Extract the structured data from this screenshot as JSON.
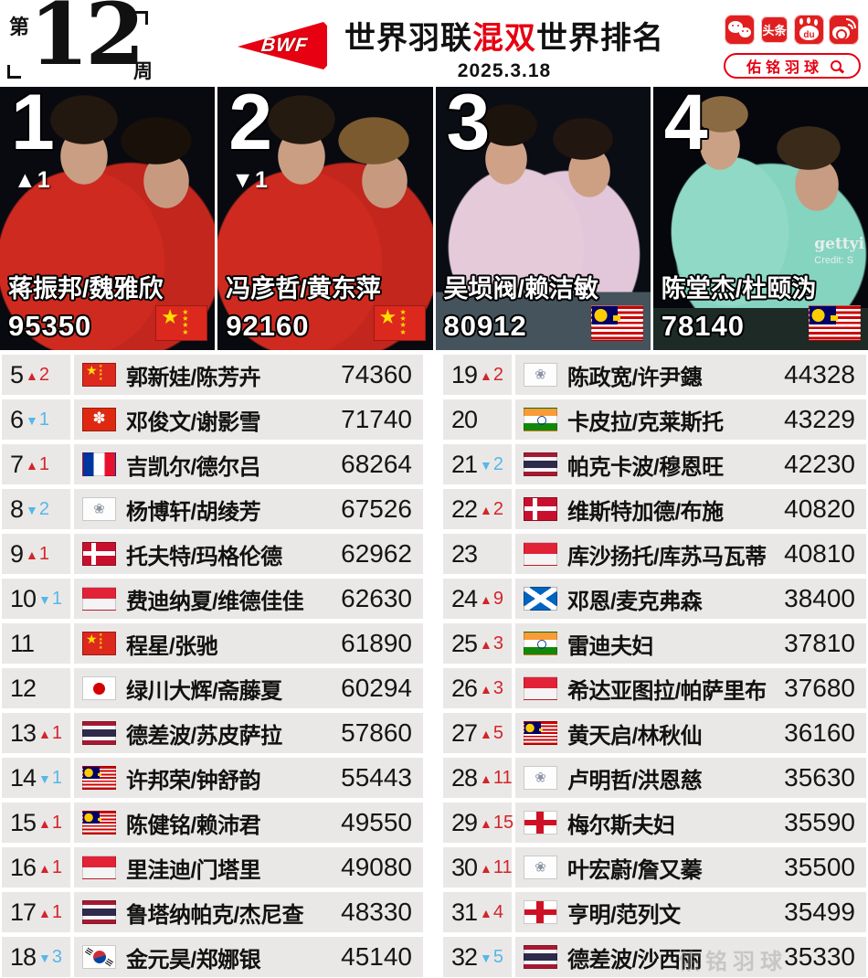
{
  "colors": {
    "accent_red": "#e60012",
    "up_red": "#d3242b",
    "down_blue": "#56b7ea",
    "row_gray": "#eae8e6"
  },
  "header": {
    "week": {
      "prefix": "第",
      "number": "12",
      "suffix": "周"
    },
    "logo_text": "BWF",
    "title": {
      "pre": "世界羽联",
      "highlight": "混双",
      "post": "世界排名"
    },
    "date": "2025.3.18",
    "icons_labels": {
      "toutiao": "头条",
      "baidu_du": "du"
    },
    "search_label": "佑铭羽球"
  },
  "top_cards": [
    {
      "rank": "1",
      "change": "▲1",
      "names": "蒋振邦/魏雅欣",
      "points": "95350",
      "flag": "china"
    },
    {
      "rank": "2",
      "change": "▼1",
      "names": "冯彦哲/黄东萍",
      "points": "92160",
      "flag": "china"
    },
    {
      "rank": "3",
      "change": "",
      "names": "吴埙阀/赖洁敏",
      "points": "80912",
      "flag": "malaysia"
    },
    {
      "rank": "4",
      "change": "",
      "names": "陈堂杰/杜颐沩",
      "points": "78140",
      "flag": "malaysia",
      "credit": [
        "gettyi",
        "Credit: S"
      ]
    }
  ],
  "table": {
    "left_rows": [
      {
        "rank": "5",
        "dir": "up",
        "delta": "2",
        "flag": "china",
        "names": "郭新娃/陈芳卉",
        "points": "74360"
      },
      {
        "rank": "6",
        "dir": "down",
        "delta": "1",
        "flag": "hongkong",
        "names": "邓俊文/谢影雪",
        "points": "71740"
      },
      {
        "rank": "7",
        "dir": "up",
        "delta": "1",
        "flag": "france",
        "names": "吉凯尔/德尔吕",
        "points": "68264"
      },
      {
        "rank": "8",
        "dir": "down",
        "delta": "2",
        "flag": "taipei",
        "names": "杨博轩/胡绫芳",
        "points": "67526"
      },
      {
        "rank": "9",
        "dir": "up",
        "delta": "1",
        "flag": "denmark",
        "names": "托夫特/玛格伦德",
        "points": "62962"
      },
      {
        "rank": "10",
        "dir": "down",
        "delta": "1",
        "flag": "indonesia",
        "names": "费迪纳夏/维德佳佳",
        "points": "62630"
      },
      {
        "rank": "11",
        "dir": "none",
        "delta": "",
        "flag": "china",
        "names": "程星/张驰",
        "points": "61890"
      },
      {
        "rank": "12",
        "dir": "none",
        "delta": "",
        "flag": "japan",
        "names": "绿川大辉/斋藤夏",
        "points": "60294"
      },
      {
        "rank": "13",
        "dir": "up",
        "delta": "1",
        "flag": "thailand",
        "names": "德差波/苏皮萨拉",
        "points": "57860"
      },
      {
        "rank": "14",
        "dir": "down",
        "delta": "1",
        "flag": "malaysia",
        "names": "许邦荣/钟舒韵",
        "points": "55443"
      },
      {
        "rank": "15",
        "dir": "up",
        "delta": "1",
        "flag": "malaysia",
        "names": "陈健铭/赖沛君",
        "points": "49550"
      },
      {
        "rank": "16",
        "dir": "up",
        "delta": "1",
        "flag": "indonesia",
        "names": "里洼迪/门塔里",
        "points": "49080"
      },
      {
        "rank": "17",
        "dir": "up",
        "delta": "1",
        "flag": "thailand",
        "names": "鲁塔纳帕克/杰尼查",
        "points": "48330"
      },
      {
        "rank": "18",
        "dir": "down",
        "delta": "3",
        "flag": "korea",
        "names": "金元昊/郑娜银",
        "points": "45140"
      }
    ],
    "right_rows": [
      {
        "rank": "19",
        "dir": "up",
        "delta": "2",
        "flag": "taipei",
        "names": "陈政宽/许尹鏸",
        "points": "44328"
      },
      {
        "rank": "20",
        "dir": "none",
        "delta": "",
        "flag": "india",
        "names": "卡皮拉/克莱斯托",
        "points": "43229"
      },
      {
        "rank": "21",
        "dir": "down",
        "delta": "2",
        "flag": "thailand",
        "names": "帕克卡波/穆恩旺",
        "points": "42230"
      },
      {
        "rank": "22",
        "dir": "up",
        "delta": "2",
        "flag": "denmark",
        "names": "维斯特加德/布施",
        "points": "40820"
      },
      {
        "rank": "23",
        "dir": "none",
        "delta": "",
        "flag": "indonesia",
        "names": "库沙扬托/库苏马瓦蒂",
        "points": "40810"
      },
      {
        "rank": "24",
        "dir": "up",
        "delta": "9",
        "flag": "scotland",
        "names": "邓恩/麦克弗森",
        "points": "38400"
      },
      {
        "rank": "25",
        "dir": "up",
        "delta": "3",
        "flag": "india",
        "names": "雷迪夫妇",
        "points": "37810"
      },
      {
        "rank": "26",
        "dir": "up",
        "delta": "3",
        "flag": "indonesia",
        "names": "希达亚图拉/帕萨里布",
        "points": "37680"
      },
      {
        "rank": "27",
        "dir": "up",
        "delta": "5",
        "flag": "malaysia",
        "names": "黄天启/林秋仙",
        "points": "36160"
      },
      {
        "rank": "28",
        "dir": "up",
        "delta": "11",
        "flag": "taipei",
        "names": "卢明哲/洪恩慈",
        "points": "35630"
      },
      {
        "rank": "29",
        "dir": "up",
        "delta": "15",
        "flag": "england",
        "names": "梅尔斯夫妇",
        "points": "35590"
      },
      {
        "rank": "30",
        "dir": "up",
        "delta": "11",
        "flag": "taipei",
        "names": "叶宏蔚/詹又蓁",
        "points": "35500"
      },
      {
        "rank": "31",
        "dir": "up",
        "delta": "4",
        "flag": "england",
        "names": "亨明/范列文",
        "points": "35499"
      },
      {
        "rank": "32",
        "dir": "down",
        "delta": "5",
        "flag": "thailand",
        "names": "德差波/沙西丽",
        "points": "35330"
      }
    ]
  },
  "watermark": "佑铭羽球"
}
